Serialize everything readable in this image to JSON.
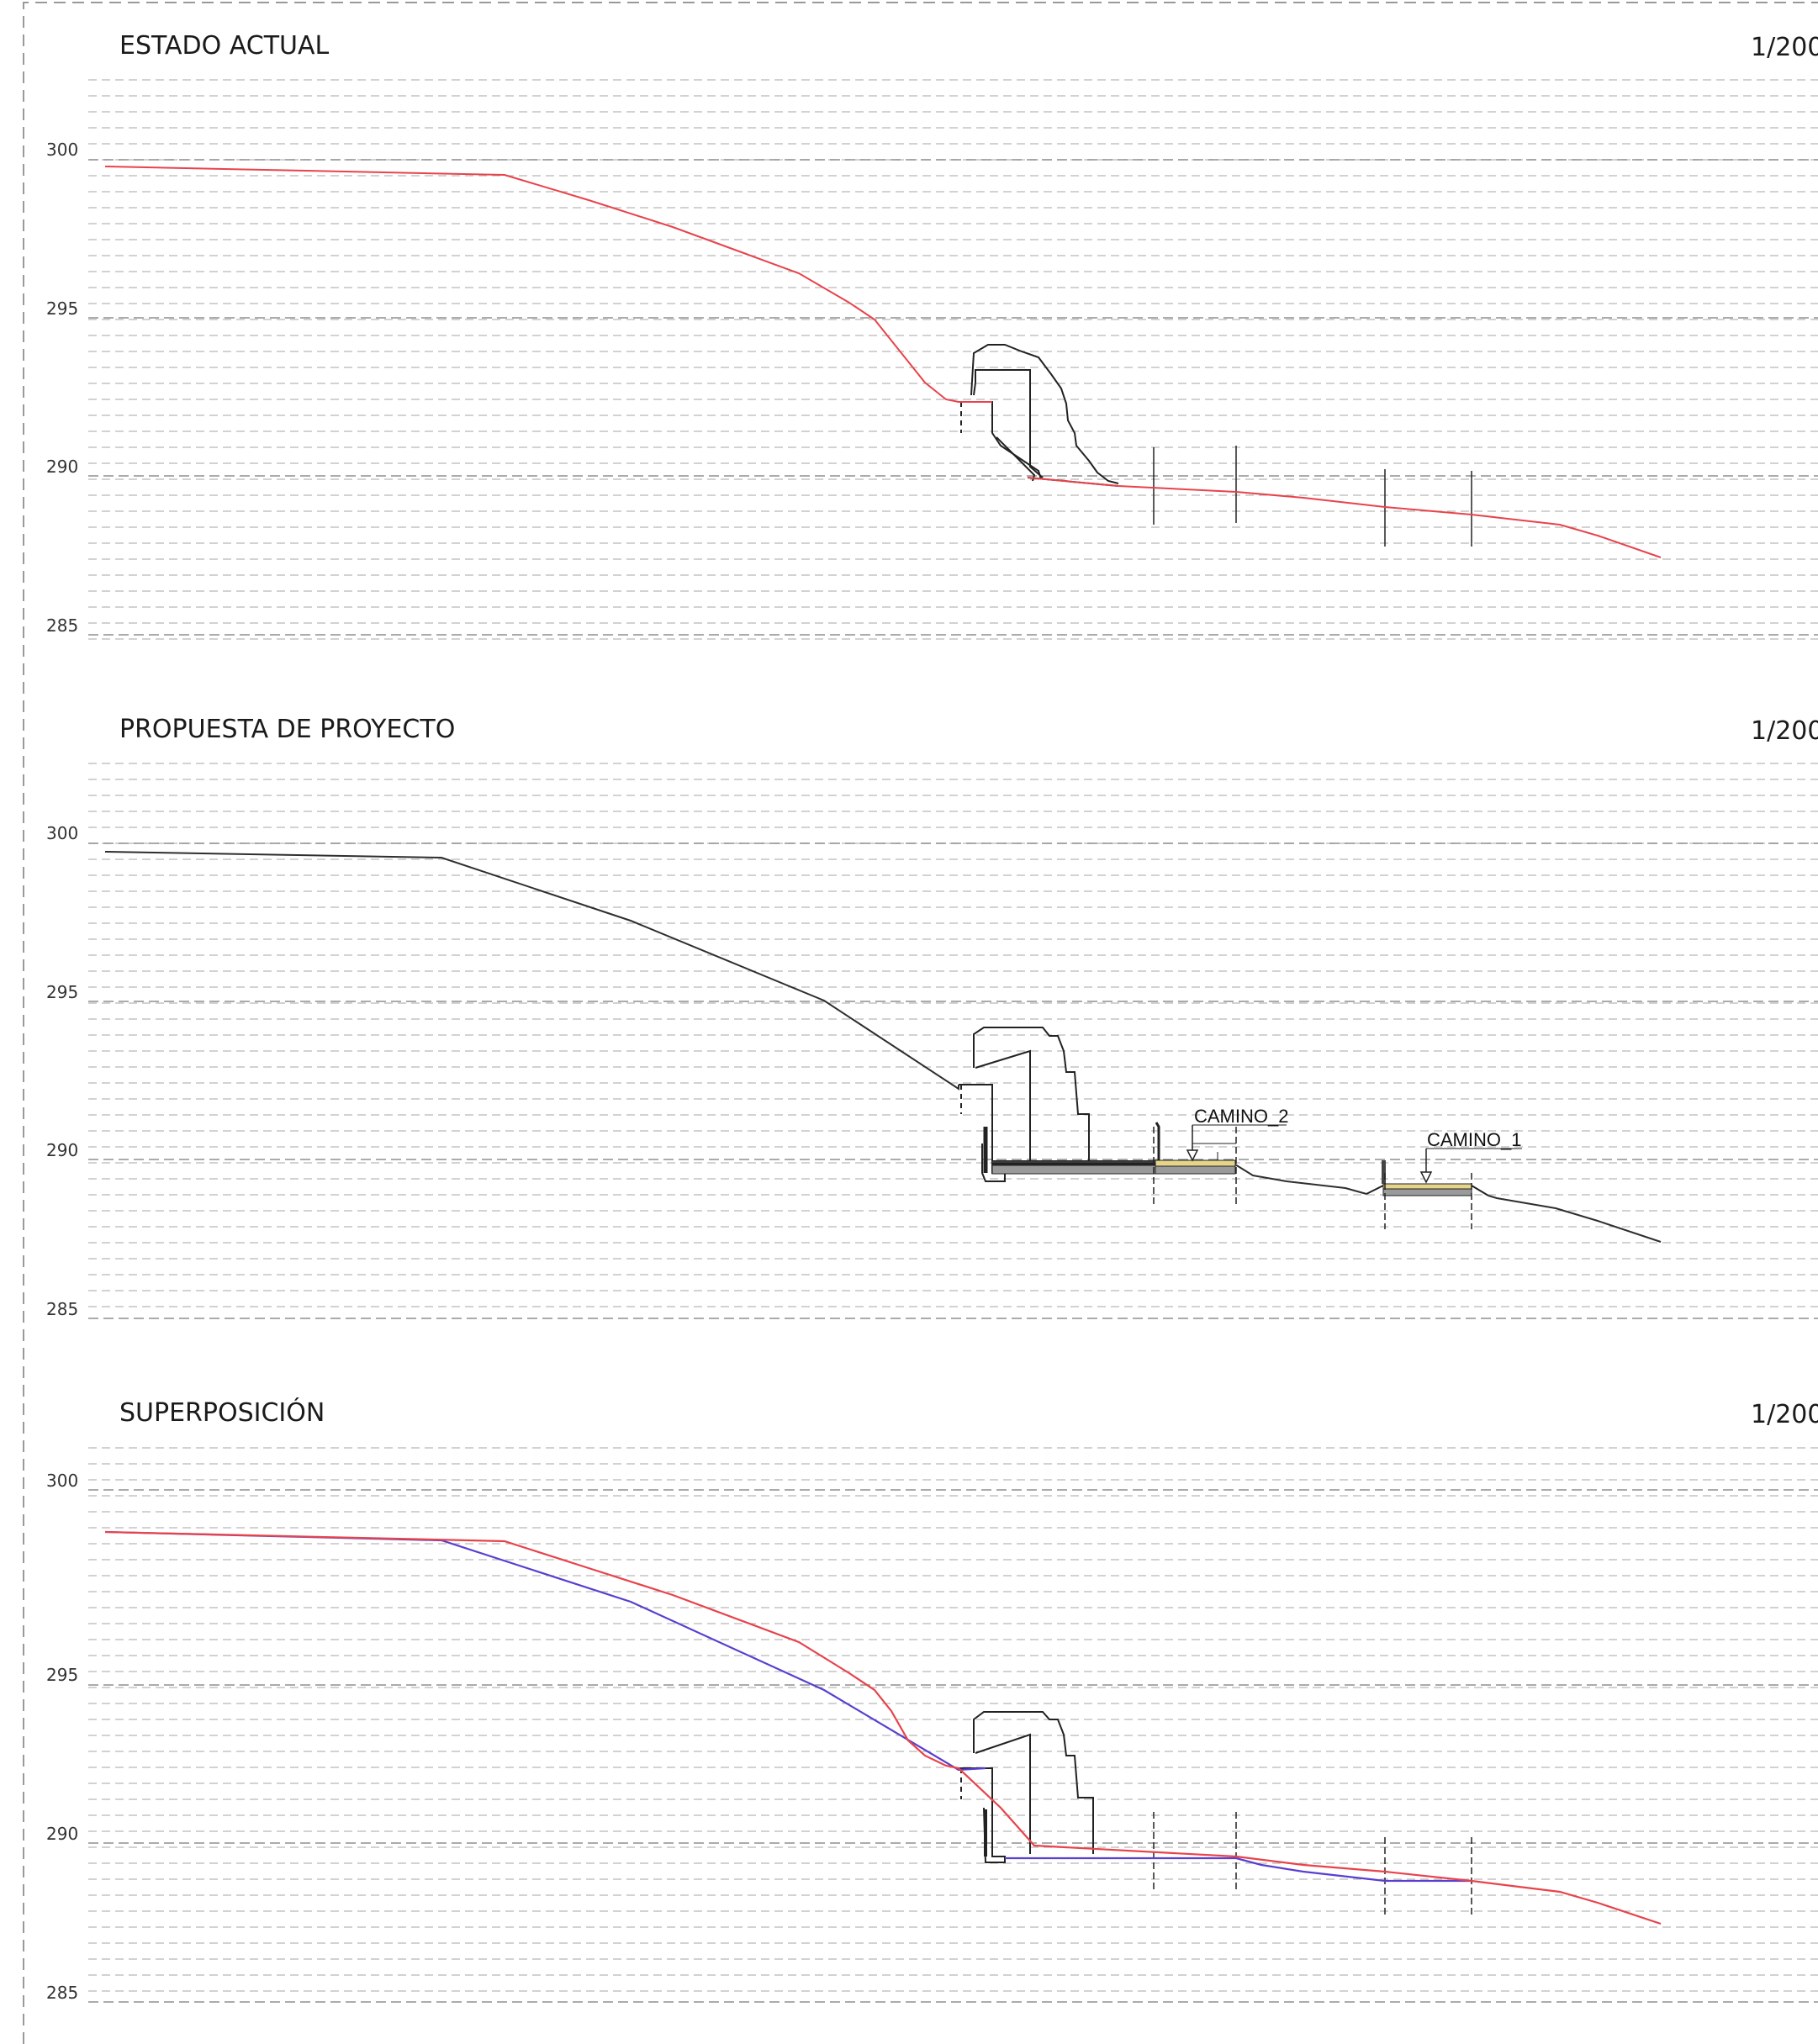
{
  "colors": {
    "existing_profile": "#e8434b",
    "proposed_profile": "#2e2e2e",
    "overlay_proposed": "#5a3fd0",
    "structure": "#222222",
    "path_fill": "#e6d48a",
    "grid": "#b8b8b8"
  },
  "sections": [
    {
      "id": "estado",
      "title": "ESTADO ACTUAL",
      "scale": "1/200",
      "ticks": [
        "300",
        "295",
        "290",
        "285"
      ]
    },
    {
      "id": "propuesta",
      "title": "PROPUESTA DE PROYECTO",
      "scale": "1/200",
      "ticks": [
        "300",
        "295",
        "290",
        "285"
      ],
      "callouts": [
        {
          "label": "CAMINO_2"
        },
        {
          "label": "CAMINO_1"
        }
      ]
    },
    {
      "id": "superposicion",
      "title": "SUPERPOSICIÓN",
      "scale": "1/200",
      "ticks": [
        "300",
        "295",
        "290",
        "285"
      ]
    }
  ]
}
